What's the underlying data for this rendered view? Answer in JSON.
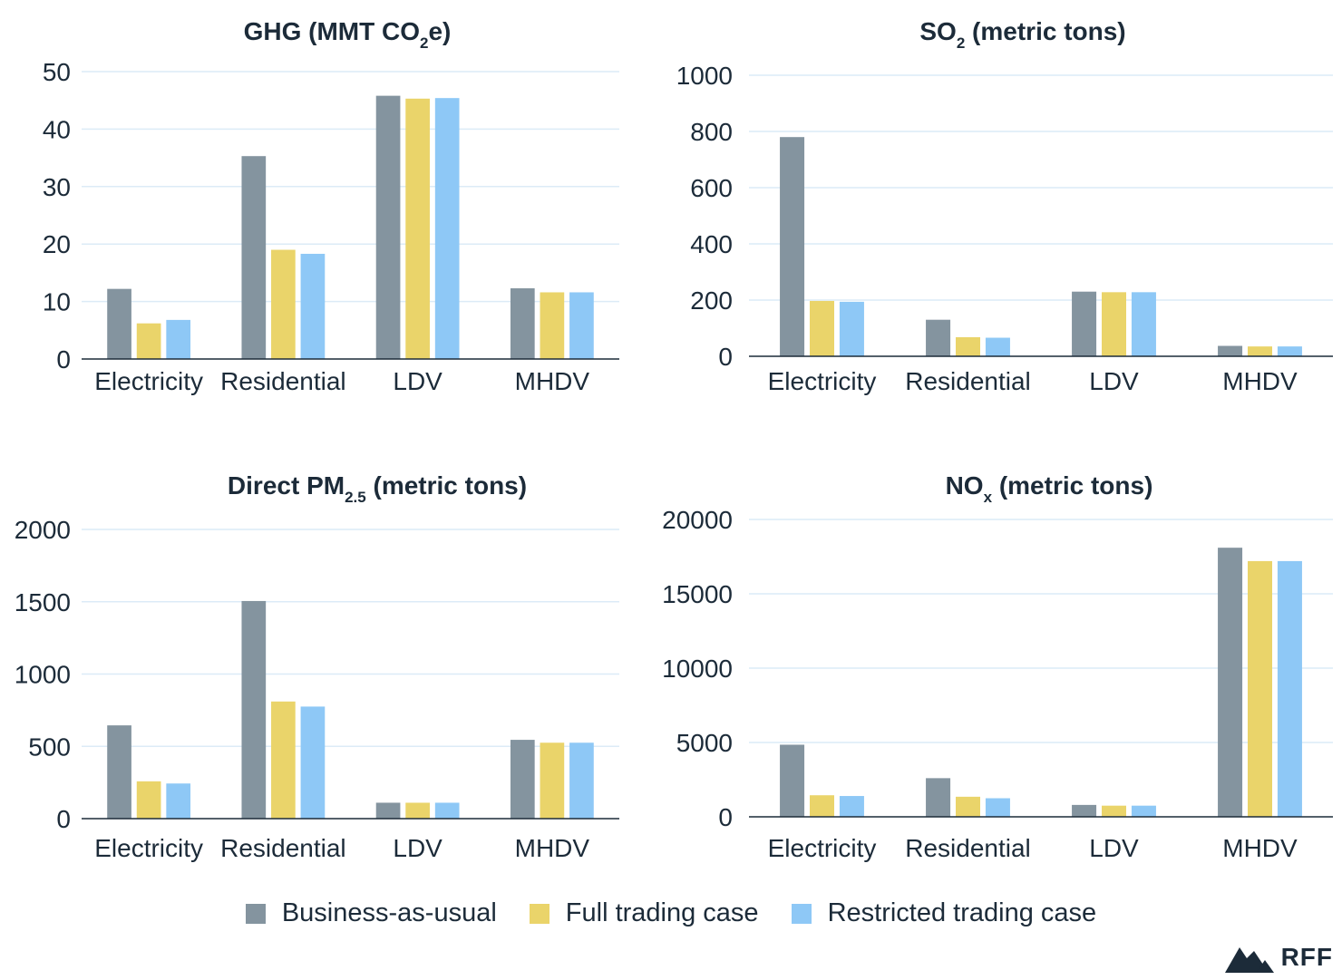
{
  "legend": {
    "items": [
      {
        "label": "Business-as-usual",
        "color": "#84949f"
      },
      {
        "label": "Full trading case",
        "color": "#ead46a"
      },
      {
        "label": "Restricted trading case",
        "color": "#8ec8f6"
      }
    ]
  },
  "logo": {
    "text": "RFF",
    "icon": "mountain-icon"
  },
  "chart_data": [
    {
      "type": "bar",
      "title": {
        "main": "GHG (MMT CO",
        "sub": "2",
        "tail": "e)"
      },
      "categories": [
        "Electricity",
        "Residential",
        "LDV",
        "MHDV"
      ],
      "ylim": [
        0,
        50
      ],
      "yticks": [
        0,
        10,
        20,
        30,
        40,
        50
      ],
      "grid": true,
      "series": [
        {
          "name": "Business-as-usual",
          "values": [
            12.2,
            35.3,
            45.8,
            12.3
          ]
        },
        {
          "name": "Full trading case",
          "values": [
            6.2,
            19.0,
            45.3,
            11.6
          ]
        },
        {
          "name": "Restricted trading case",
          "values": [
            6.8,
            18.3,
            45.4,
            11.6
          ]
        }
      ]
    },
    {
      "type": "bar",
      "title": {
        "main": "SO",
        "sub": "2",
        "tail": " (metric tons)"
      },
      "categories": [
        "Electricity",
        "Residential",
        "LDV",
        "MHDV"
      ],
      "ylim": [
        0,
        1000
      ],
      "yticks": [
        0,
        200,
        400,
        600,
        800,
        1000
      ],
      "grid": true,
      "series": [
        {
          "name": "Business-as-usual",
          "values": [
            780,
            130,
            230,
            37
          ]
        },
        {
          "name": "Full trading case",
          "values": [
            197,
            68,
            228,
            35
          ]
        },
        {
          "name": "Restricted trading case",
          "values": [
            194,
            66,
            228,
            35
          ]
        }
      ]
    },
    {
      "type": "bar",
      "title": {
        "main": "Direct PM",
        "sub": "2.5",
        "tail": " (metric tons)"
      },
      "categories": [
        "Electricity",
        "Residential",
        "LDV",
        "MHDV"
      ],
      "ylim": [
        0,
        2000
      ],
      "yticks": [
        0,
        500,
        1000,
        1500,
        2000
      ],
      "grid": true,
      "series": [
        {
          "name": "Business-as-usual",
          "values": [
            645,
            1505,
            110,
            545
          ]
        },
        {
          "name": "Full trading case",
          "values": [
            258,
            810,
            110,
            525
          ]
        },
        {
          "name": "Restricted trading case",
          "values": [
            243,
            775,
            110,
            525
          ]
        }
      ]
    },
    {
      "type": "bar",
      "title": {
        "main": "NO",
        "sub": "x",
        "tail": " (metric tons)"
      },
      "categories": [
        "Electricity",
        "Residential",
        "LDV",
        "MHDV"
      ],
      "ylim": [
        0,
        20000
      ],
      "yticks": [
        0,
        5000,
        10000,
        15000,
        20000
      ],
      "grid": true,
      "series": [
        {
          "name": "Business-as-usual",
          "values": [
            4850,
            2600,
            800,
            18100
          ]
        },
        {
          "name": "Full trading case",
          "values": [
            1450,
            1350,
            750,
            17200
          ]
        },
        {
          "name": "Restricted trading case",
          "values": [
            1400,
            1250,
            750,
            17200
          ]
        }
      ]
    }
  ]
}
